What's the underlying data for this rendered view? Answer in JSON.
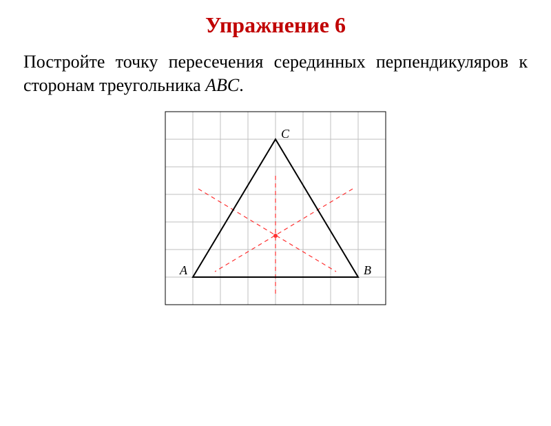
{
  "heading": {
    "text": "Упражнение 6",
    "color": "#c00000",
    "fontsize": 32
  },
  "paragraph": {
    "text": "Постройте точку пересечения серединных перпендикуляров к сторонам треугольника ABC.",
    "color": "#000000",
    "fontsize": 26,
    "italic_tail": "ABC"
  },
  "diagram": {
    "type": "geometry",
    "grid": {
      "cols": 8,
      "rows": 7,
      "cell": 40,
      "line_color": "#bfbfbf",
      "line_width": 1,
      "border_color": "#000000",
      "border_width": 1,
      "background": "#ffffff"
    },
    "triangle": {
      "A": [
        1,
        6
      ],
      "B": [
        7,
        6
      ],
      "C": [
        4,
        1
      ],
      "stroke": "#000000",
      "stroke_width": 2,
      "label_A": "A",
      "label_B": "B",
      "label_C": "C",
      "label_fontsize": 18
    },
    "perp_bisectors": {
      "stroke": "#ff3030",
      "stroke_width": 1.2,
      "dash": "6,5",
      "segments": [
        {
          "from": [
            4.0,
            6.6
          ],
          "to": [
            4.0,
            2.3
          ]
        },
        {
          "from": [
            1.2,
            2.8
          ],
          "to": [
            6.2,
            5.8
          ]
        },
        {
          "from": [
            6.8,
            2.8
          ],
          "to": [
            1.8,
            5.8
          ]
        }
      ],
      "intersection": {
        "at": [
          4.0,
          4.5
        ],
        "radius": 3,
        "fill": "#ff3030"
      }
    }
  }
}
